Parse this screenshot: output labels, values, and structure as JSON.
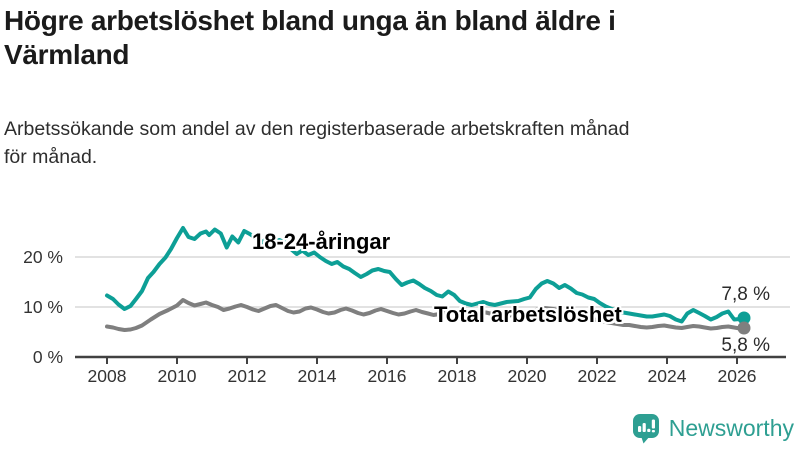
{
  "header": {
    "title_lines": [
      "Högre arbetslöshet bland unga än bland äldre i",
      "Värmland"
    ],
    "subtitle_lines": [
      "Arbetssökande som andel av den registerbaserade arbetskraften månad",
      "för månad."
    ]
  },
  "colors": {
    "youth": "#0d9f96",
    "total": "#7f7f7f",
    "grid": "#d9d9d9",
    "axis": "#414141",
    "tick_text": "#333333",
    "logo": "#2e9f92"
  },
  "footer": {
    "brand": "Newsworthy",
    "brand_icon": "bar-chart-speech-bubble"
  },
  "chart_data": {
    "type": "line",
    "title": "Högre arbetslöshet bland unga än bland äldre i Värmland",
    "subtitle": "Arbetssökande som andel av den registerbaserade arbetskraften månad för månad.",
    "xlabel": "",
    "ylabel": "",
    "unit": "%",
    "grid": "horizontal",
    "legend_position": "inline-labels",
    "x_axis": {
      "ticks": [
        2008,
        2010,
        2012,
        2014,
        2016,
        2018,
        2020,
        2022,
        2024,
        2026
      ],
      "range": [
        2007.1,
        2027.5
      ]
    },
    "y_axis": {
      "ticks": [
        0,
        10,
        20
      ],
      "tick_labels": [
        "0 %",
        "10 %",
        "20 %"
      ],
      "range": [
        0,
        28.4
      ]
    },
    "series": [
      {
        "name": "18-24-åringar",
        "color_key": "youth",
        "end_label": "7,8 %",
        "end_value": 7.8,
        "points": [
          [
            2008.0,
            12.3
          ],
          [
            2008.17,
            11.6
          ],
          [
            2008.33,
            10.5
          ],
          [
            2008.5,
            9.6
          ],
          [
            2008.67,
            10.2
          ],
          [
            2008.83,
            11.6
          ],
          [
            2009.0,
            13.2
          ],
          [
            2009.17,
            15.8
          ],
          [
            2009.33,
            17.0
          ],
          [
            2009.5,
            18.6
          ],
          [
            2009.67,
            19.9
          ],
          [
            2009.83,
            21.6
          ],
          [
            2010.0,
            23.8
          ],
          [
            2010.17,
            25.8
          ],
          [
            2010.33,
            24.0
          ],
          [
            2010.5,
            23.6
          ],
          [
            2010.67,
            24.7
          ],
          [
            2010.83,
            25.1
          ],
          [
            2010.92,
            24.4
          ],
          [
            2011.08,
            25.5
          ],
          [
            2011.25,
            24.7
          ],
          [
            2011.42,
            21.9
          ],
          [
            2011.58,
            24.1
          ],
          [
            2011.75,
            22.9
          ],
          [
            2011.92,
            25.2
          ],
          [
            2012.08,
            24.6
          ],
          [
            2012.25,
            23.8
          ],
          [
            2012.42,
            22.9
          ],
          [
            2012.58,
            23.8
          ],
          [
            2012.75,
            22.6
          ],
          [
            2012.92,
            23.4
          ],
          [
            2013.08,
            22.9
          ],
          [
            2013.25,
            21.6
          ],
          [
            2013.42,
            20.6
          ],
          [
            2013.58,
            21.3
          ],
          [
            2013.75,
            20.4
          ],
          [
            2013.92,
            20.9
          ],
          [
            2014.08,
            20.0
          ],
          [
            2014.25,
            19.2
          ],
          [
            2014.42,
            18.6
          ],
          [
            2014.58,
            19.0
          ],
          [
            2014.75,
            18.1
          ],
          [
            2014.92,
            17.6
          ],
          [
            2015.08,
            16.8
          ],
          [
            2015.25,
            16.0
          ],
          [
            2015.42,
            16.6
          ],
          [
            2015.58,
            17.3
          ],
          [
            2015.75,
            17.6
          ],
          [
            2015.92,
            17.2
          ],
          [
            2016.08,
            17.0
          ],
          [
            2016.25,
            15.6
          ],
          [
            2016.42,
            14.4
          ],
          [
            2016.58,
            14.9
          ],
          [
            2016.75,
            15.3
          ],
          [
            2016.92,
            14.6
          ],
          [
            2017.08,
            13.8
          ],
          [
            2017.25,
            13.2
          ],
          [
            2017.42,
            12.4
          ],
          [
            2017.58,
            12.1
          ],
          [
            2017.75,
            13.1
          ],
          [
            2017.92,
            12.4
          ],
          [
            2018.08,
            11.2
          ],
          [
            2018.25,
            10.7
          ],
          [
            2018.42,
            10.4
          ],
          [
            2018.58,
            10.7
          ],
          [
            2018.75,
            11.0
          ],
          [
            2018.92,
            10.6
          ],
          [
            2019.08,
            10.4
          ],
          [
            2019.25,
            10.7
          ],
          [
            2019.42,
            11.0
          ],
          [
            2019.58,
            11.1
          ],
          [
            2019.75,
            11.2
          ],
          [
            2019.92,
            11.6
          ],
          [
            2020.08,
            11.9
          ],
          [
            2020.25,
            13.6
          ],
          [
            2020.42,
            14.7
          ],
          [
            2020.58,
            15.2
          ],
          [
            2020.75,
            14.7
          ],
          [
            2020.92,
            13.8
          ],
          [
            2021.08,
            14.4
          ],
          [
            2021.25,
            13.7
          ],
          [
            2021.42,
            12.8
          ],
          [
            2021.58,
            12.5
          ],
          [
            2021.75,
            11.9
          ],
          [
            2021.92,
            11.6
          ],
          [
            2022.08,
            10.8
          ],
          [
            2022.25,
            10.1
          ],
          [
            2022.42,
            9.6
          ],
          [
            2022.58,
            9.2
          ],
          [
            2022.75,
            8.9
          ],
          [
            2022.92,
            8.7
          ],
          [
            2023.08,
            8.5
          ],
          [
            2023.25,
            8.3
          ],
          [
            2023.42,
            8.1
          ],
          [
            2023.58,
            8.1
          ],
          [
            2023.75,
            8.3
          ],
          [
            2023.92,
            8.5
          ],
          [
            2024.08,
            8.2
          ],
          [
            2024.25,
            7.5
          ],
          [
            2024.42,
            7.1
          ],
          [
            2024.58,
            8.7
          ],
          [
            2024.75,
            9.4
          ],
          [
            2024.92,
            8.8
          ],
          [
            2025.08,
            8.2
          ],
          [
            2025.25,
            7.5
          ],
          [
            2025.42,
            8.0
          ],
          [
            2025.58,
            8.7
          ],
          [
            2025.75,
            9.1
          ],
          [
            2025.92,
            7.5
          ],
          [
            2026.08,
            7.6
          ],
          [
            2026.2,
            7.8
          ]
        ]
      },
      {
        "name": "Total arbetslöshet",
        "color_key": "total",
        "end_label": "5,8 %",
        "end_value": 5.8,
        "points": [
          [
            2008.0,
            6.1
          ],
          [
            2008.17,
            5.9
          ],
          [
            2008.33,
            5.6
          ],
          [
            2008.5,
            5.4
          ],
          [
            2008.67,
            5.5
          ],
          [
            2008.83,
            5.8
          ],
          [
            2009.0,
            6.3
          ],
          [
            2009.25,
            7.5
          ],
          [
            2009.5,
            8.6
          ],
          [
            2009.75,
            9.4
          ],
          [
            2010.0,
            10.3
          ],
          [
            2010.17,
            11.4
          ],
          [
            2010.33,
            10.8
          ],
          [
            2010.5,
            10.3
          ],
          [
            2010.67,
            10.6
          ],
          [
            2010.83,
            10.9
          ],
          [
            2011.0,
            10.4
          ],
          [
            2011.17,
            10.0
          ],
          [
            2011.33,
            9.4
          ],
          [
            2011.5,
            9.7
          ],
          [
            2011.67,
            10.1
          ],
          [
            2011.83,
            10.4
          ],
          [
            2012.0,
            10.0
          ],
          [
            2012.17,
            9.5
          ],
          [
            2012.33,
            9.2
          ],
          [
            2012.5,
            9.7
          ],
          [
            2012.67,
            10.2
          ],
          [
            2012.83,
            10.4
          ],
          [
            2013.0,
            9.8
          ],
          [
            2013.17,
            9.2
          ],
          [
            2013.33,
            8.9
          ],
          [
            2013.5,
            9.1
          ],
          [
            2013.67,
            9.7
          ],
          [
            2013.83,
            9.9
          ],
          [
            2014.0,
            9.5
          ],
          [
            2014.17,
            9.0
          ],
          [
            2014.33,
            8.7
          ],
          [
            2014.5,
            8.9
          ],
          [
            2014.67,
            9.4
          ],
          [
            2014.83,
            9.7
          ],
          [
            2015.0,
            9.3
          ],
          [
            2015.17,
            8.8
          ],
          [
            2015.33,
            8.5
          ],
          [
            2015.5,
            8.8
          ],
          [
            2015.67,
            9.3
          ],
          [
            2015.83,
            9.6
          ],
          [
            2016.0,
            9.2
          ],
          [
            2016.17,
            8.8
          ],
          [
            2016.33,
            8.5
          ],
          [
            2016.5,
            8.7
          ],
          [
            2016.67,
            9.1
          ],
          [
            2016.83,
            9.4
          ],
          [
            2017.0,
            9.0
          ],
          [
            2017.17,
            8.7
          ],
          [
            2017.33,
            8.4
          ],
          [
            2017.5,
            8.6
          ],
          [
            2017.67,
            9.0
          ],
          [
            2017.83,
            9.2
          ],
          [
            2018.0,
            8.8
          ],
          [
            2018.17,
            8.5
          ],
          [
            2018.33,
            8.2
          ],
          [
            2018.5,
            8.4
          ],
          [
            2018.67,
            8.7
          ],
          [
            2018.83,
            8.9
          ],
          [
            2019.0,
            8.6
          ],
          [
            2019.17,
            8.3
          ],
          [
            2019.33,
            8.1
          ],
          [
            2019.5,
            8.3
          ],
          [
            2019.67,
            8.6
          ],
          [
            2019.83,
            8.8
          ],
          [
            2020.0,
            8.9
          ],
          [
            2020.25,
            9.4
          ],
          [
            2020.5,
            9.8
          ],
          [
            2020.75,
            9.6
          ],
          [
            2021.0,
            9.2
          ],
          [
            2021.25,
            8.8
          ],
          [
            2021.5,
            8.3
          ],
          [
            2021.75,
            7.8
          ],
          [
            2022.0,
            7.4
          ],
          [
            2022.25,
            7.0
          ],
          [
            2022.5,
            6.7
          ],
          [
            2022.75,
            6.4
          ],
          [
            2022.92,
            6.4
          ],
          [
            2023.08,
            6.2
          ],
          [
            2023.25,
            6.0
          ],
          [
            2023.42,
            5.9
          ],
          [
            2023.58,
            6.0
          ],
          [
            2023.75,
            6.2
          ],
          [
            2023.92,
            6.3
          ],
          [
            2024.08,
            6.1
          ],
          [
            2024.25,
            5.9
          ],
          [
            2024.42,
            5.8
          ],
          [
            2024.58,
            6.0
          ],
          [
            2024.75,
            6.2
          ],
          [
            2024.92,
            6.1
          ],
          [
            2025.08,
            5.9
          ],
          [
            2025.25,
            5.7
          ],
          [
            2025.42,
            5.8
          ],
          [
            2025.58,
            6.0
          ],
          [
            2025.75,
            6.1
          ],
          [
            2025.92,
            5.9
          ],
          [
            2026.08,
            5.7
          ],
          [
            2026.2,
            5.8
          ]
        ]
      }
    ]
  }
}
